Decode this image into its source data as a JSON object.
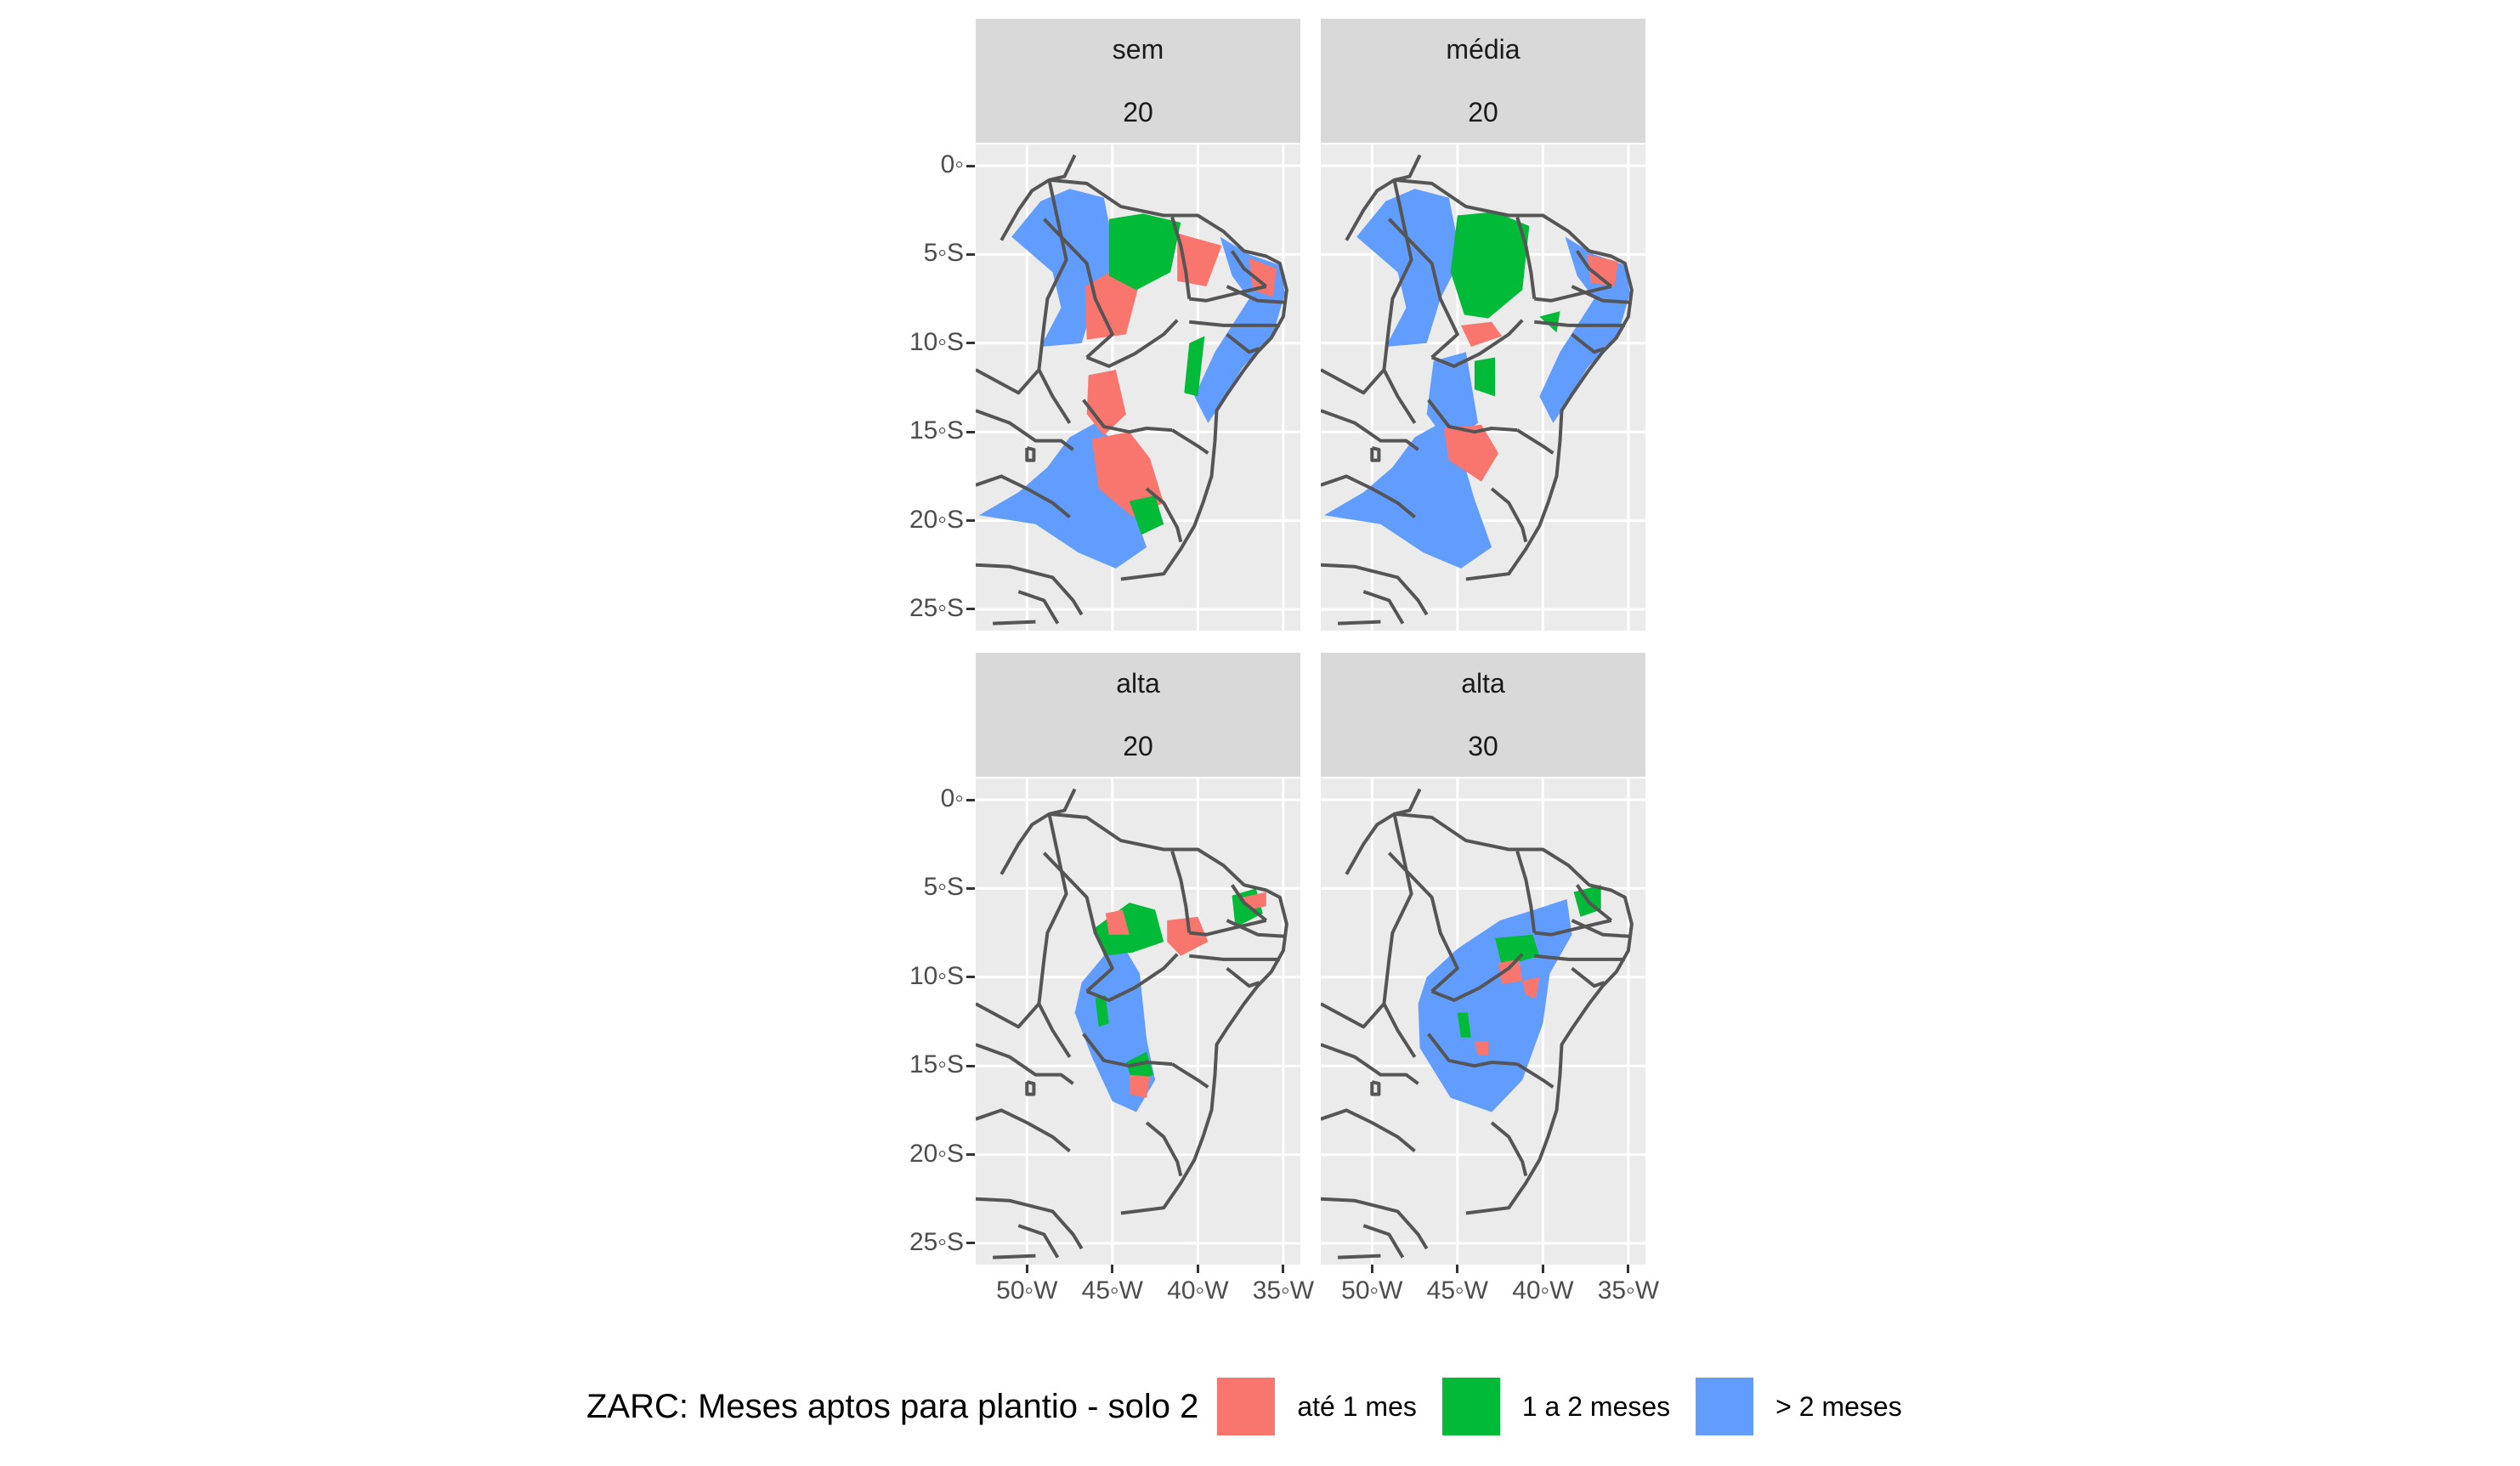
{
  "legend": {
    "title": "ZARC: Meses aptos para plantio - solo 2",
    "items": [
      {
        "label": "até 1 mes",
        "color": "#F8766D"
      },
      {
        "label": "1 a 2 meses",
        "color": "#00BA38"
      },
      {
        "label": "> 2 meses",
        "color": "#619CFF"
      }
    ]
  },
  "axes": {
    "y_ticks": [
      "0◦",
      "5◦S",
      "10◦S",
      "15◦S",
      "20◦S",
      "25◦S"
    ],
    "y_values": [
      0,
      -5,
      -10,
      -15,
      -20,
      -25
    ],
    "x_ticks": [
      "50◦W",
      "45◦W",
      "40◦W",
      "35◦W"
    ],
    "x_values": [
      -50,
      -45,
      -40,
      -35
    ],
    "lon_range": [
      -53,
      -34
    ],
    "lat_range": [
      -26.2,
      1.2
    ]
  },
  "panels": [
    {
      "facet_top": "sem",
      "facet_bottom": "20"
    },
    {
      "facet_top": "média",
      "facet_bottom": "20"
    },
    {
      "facet_top": "alta",
      "facet_bottom": "20"
    },
    {
      "facet_top": "alta",
      "facet_bottom": "30"
    }
  ],
  "colors": {
    "panel_bg": "#ebebeb",
    "grid": "#ffffff",
    "border": "#555555",
    "strip_bg": "#d9d9d9"
  }
}
